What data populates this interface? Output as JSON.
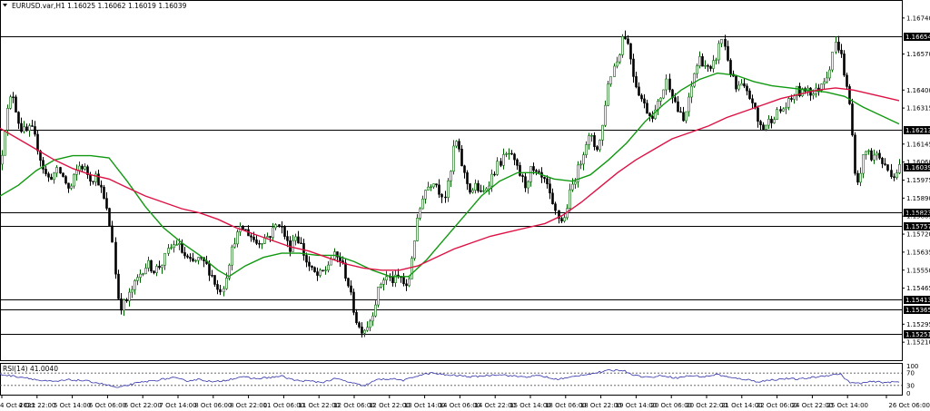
{
  "chart_data": {
    "type": "candlestick",
    "symbol_header": "EURUSD.var,H1  1.16025 1.16062 1.16019 1.16039",
    "current_price": 1.16039,
    "ylim": [
      1.15125,
      1.16825
    ],
    "y_ticks": [
      "1.16740",
      "1.16570",
      "1.16400",
      "1.16315",
      "1.16145",
      "1.16060",
      "1.15975",
      "1.15890",
      "1.15805",
      "1.15720",
      "1.15635",
      "1.15550",
      "1.15465",
      "1.15295",
      "1.15210"
    ],
    "x_ticks": [
      "4 Oct 2021",
      "4 Oct 22:00",
      "5 Oct 14:00",
      "6 Oct 06:00",
      "6 Oct 22:00",
      "7 Oct 14:00",
      "8 Oct 06:00",
      "8 Oct 22:00",
      "11 Oct 06:00",
      "11 Oct 22:00",
      "12 Oct 06:00",
      "12 Oct 22:00",
      "13 Oct 14:00",
      "14 Oct 06:00",
      "14 Oct 22:00",
      "15 Oct 14:00",
      "18 Oct 06:00",
      "18 Oct 22:00",
      "19 Oct 14:00",
      "20 Oct 06:00",
      "20 Oct 22:00",
      "21 Oct 14:00",
      "22 Oct 06:00",
      "24 Oct 22:00",
      "25 Oct 14:00",
      "26 Oct 06:00"
    ],
    "horizontal_levels": [
      "1.16654",
      "1.16213",
      "1.15823",
      "1.15757",
      "1.15413",
      "1.15365",
      "1.15251"
    ],
    "close_path": [
      [
        0,
        1.1605
      ],
      [
        5,
        1.1625
      ],
      [
        10,
        1.1635
      ],
      [
        14,
        1.1638
      ],
      [
        18,
        1.1628
      ],
      [
        22,
        1.1622
      ],
      [
        28,
        1.162
      ],
      [
        34,
        1.1622
      ],
      [
        40,
        1.1615
      ],
      [
        46,
        1.1605
      ],
      [
        52,
        1.1598
      ],
      [
        58,
        1.16
      ],
      [
        64,
        1.1602
      ],
      [
        70,
        1.1598
      ],
      [
        76,
        1.1592
      ],
      [
        82,
        1.16
      ],
      [
        88,
        1.1605
      ],
      [
        94,
        1.1602
      ],
      [
        100,
        1.1598
      ],
      [
        106,
        1.16
      ],
      [
        112,
        1.1592
      ],
      [
        118,
        1.1582
      ],
      [
        124,
        1.1568
      ],
      [
        128,
        1.1545
      ],
      [
        132,
        1.1538
      ],
      [
        138,
        1.154
      ],
      [
        144,
        1.1545
      ],
      [
        150,
        1.155
      ],
      [
        156,
        1.1555
      ],
      [
        162,
        1.1558
      ],
      [
        170,
        1.1555
      ],
      [
        178,
        1.1558
      ],
      [
        186,
        1.1565
      ],
      [
        194,
        1.1568
      ],
      [
        202,
        1.1562
      ],
      [
        210,
        1.1558
      ],
      [
        218,
        1.156
      ],
      [
        226,
        1.1558
      ],
      [
        234,
        1.1552
      ],
      [
        240,
        1.1545
      ],
      [
        246,
        1.1548
      ],
      [
        252,
        1.156
      ],
      [
        258,
        1.157
      ],
      [
        266,
        1.1575
      ],
      [
        274,
        1.1572
      ],
      [
        282,
        1.1568
      ],
      [
        290,
        1.157
      ],
      [
        298,
        1.1572
      ],
      [
        306,
        1.1578
      ],
      [
        312,
        1.1572
      ],
      [
        318,
        1.1565
      ],
      [
        324,
        1.1572
      ],
      [
        330,
        1.1568
      ],
      [
        336,
        1.156
      ],
      [
        342,
        1.1555
      ],
      [
        350,
        1.1552
      ],
      [
        358,
        1.1555
      ],
      [
        366,
        1.1562
      ],
      [
        374,
        1.156
      ],
      [
        382,
        1.155
      ],
      [
        388,
        1.1538
      ],
      [
        394,
        1.1528
      ],
      [
        400,
        1.1527
      ],
      [
        406,
        1.153
      ],
      [
        412,
        1.1538
      ],
      [
        418,
        1.1548
      ],
      [
        424,
        1.1552
      ],
      [
        432,
        1.155
      ],
      [
        440,
        1.1552
      ],
      [
        448,
        1.1545
      ],
      [
        454,
        1.1565
      ],
      [
        460,
        1.158
      ],
      [
        466,
        1.1592
      ],
      [
        472,
        1.1595
      ],
      [
        478,
        1.1598
      ],
      [
        484,
        1.1592
      ],
      [
        490,
        1.159
      ],
      [
        496,
        1.1602
      ],
      [
        500,
        1.1618
      ],
      [
        506,
        1.1608
      ],
      [
        512,
        1.1598
      ],
      [
        518,
        1.1592
      ],
      [
        524,
        1.1595
      ],
      [
        530,
        1.159
      ],
      [
        536,
        1.1595
      ],
      [
        542,
        1.16
      ],
      [
        548,
        1.1605
      ],
      [
        554,
        1.1608
      ],
      [
        560,
        1.161
      ],
      [
        566,
        1.1605
      ],
      [
        572,
        1.16
      ],
      [
        578,
        1.1595
      ],
      [
        584,
        1.1602
      ],
      [
        590,
        1.16
      ],
      [
        596,
        1.1598
      ],
      [
        602,
        1.1595
      ],
      [
        608,
        1.1585
      ],
      [
        614,
        1.158
      ],
      [
        620,
        1.1578
      ],
      [
        626,
        1.159
      ],
      [
        632,
        1.1598
      ],
      [
        638,
        1.1605
      ],
      [
        644,
        1.1615
      ],
      [
        650,
        1.1618
      ],
      [
        656,
        1.1612
      ],
      [
        662,
        1.1618
      ],
      [
        668,
        1.164
      ],
      [
        674,
        1.165
      ],
      [
        680,
        1.1655
      ],
      [
        686,
        1.1668
      ],
      [
        692,
        1.166
      ],
      [
        698,
        1.1645
      ],
      [
        704,
        1.1638
      ],
      [
        710,
        1.1632
      ],
      [
        716,
        1.1628
      ],
      [
        722,
        1.163
      ],
      [
        728,
        1.1638
      ],
      [
        734,
        1.1645
      ],
      [
        740,
        1.1638
      ],
      [
        746,
        1.163
      ],
      [
        752,
        1.1625
      ],
      [
        758,
        1.1635
      ],
      [
        764,
        1.1648
      ],
      [
        770,
        1.1655
      ],
      [
        776,
        1.1652
      ],
      [
        782,
        1.1648
      ],
      [
        788,
        1.1655
      ],
      [
        794,
        1.1665
      ],
      [
        798,
        1.166
      ],
      [
        804,
        1.1648
      ],
      [
        810,
        1.164
      ],
      [
        816,
        1.1642
      ],
      [
        822,
        1.1638
      ],
      [
        828,
        1.1635
      ],
      [
        834,
        1.1625
      ],
      [
        840,
        1.1622
      ],
      [
        846,
        1.1625
      ],
      [
        852,
        1.1628
      ],
      [
        858,
        1.163
      ],
      [
        864,
        1.1632
      ],
      [
        870,
        1.1635
      ],
      [
        876,
        1.164
      ],
      [
        882,
        1.1638
      ],
      [
        888,
        1.1642
      ],
      [
        894,
        1.1638
      ],
      [
        900,
        1.164
      ],
      [
        906,
        1.1645
      ],
      [
        912,
        1.1648
      ],
      [
        918,
        1.1662
      ],
      [
        924,
        1.166
      ],
      [
        930,
        1.1645
      ],
      [
        936,
        1.163
      ],
      [
        940,
        1.1605
      ],
      [
        944,
        1.1595
      ],
      [
        948,
        1.1605
      ],
      [
        954,
        1.1612
      ],
      [
        960,
        1.1608
      ],
      [
        966,
        1.161
      ],
      [
        972,
        1.1605
      ],
      [
        978,
        1.1602
      ],
      [
        984,
        1.16
      ],
      [
        990,
        1.1604
      ]
    ],
    "ma_fast_green": [
      [
        0,
        1.159
      ],
      [
        20,
        1.1595
      ],
      [
        40,
        1.1602
      ],
      [
        60,
        1.1607
      ],
      [
        80,
        1.1609
      ],
      [
        100,
        1.1609
      ],
      [
        120,
        1.1608
      ],
      [
        140,
        1.1597
      ],
      [
        160,
        1.1585
      ],
      [
        180,
        1.1575
      ],
      [
        200,
        1.1568
      ],
      [
        220,
        1.1562
      ],
      [
        240,
        1.1555
      ],
      [
        252,
        1.1552
      ],
      [
        270,
        1.1557
      ],
      [
        290,
        1.1561
      ],
      [
        310,
        1.1563
      ],
      [
        330,
        1.1563
      ],
      [
        350,
        1.1562
      ],
      [
        370,
        1.1562
      ],
      [
        390,
        1.1559
      ],
      [
        410,
        1.1555
      ],
      [
        430,
        1.1552
      ],
      [
        450,
        1.1552
      ],
      [
        470,
        1.156
      ],
      [
        490,
        1.157
      ],
      [
        510,
        1.158
      ],
      [
        530,
        1.159
      ],
      [
        550,
        1.1597
      ],
      [
        570,
        1.1601
      ],
      [
        590,
        1.1601
      ],
      [
        610,
        1.1598
      ],
      [
        630,
        1.1597
      ],
      [
        650,
        1.16
      ],
      [
        670,
        1.1607
      ],
      [
        690,
        1.1615
      ],
      [
        710,
        1.1625
      ],
      [
        730,
        1.1633
      ],
      [
        750,
        1.164
      ],
      [
        770,
        1.1645
      ],
      [
        790,
        1.1648
      ],
      [
        810,
        1.1647
      ],
      [
        830,
        1.1644
      ],
      [
        850,
        1.1642
      ],
      [
        870,
        1.1641
      ],
      [
        890,
        1.164
      ],
      [
        910,
        1.1639
      ],
      [
        930,
        1.1637
      ],
      [
        950,
        1.1632
      ],
      [
        970,
        1.1628
      ],
      [
        990,
        1.1624
      ]
    ],
    "ma_slow_red": [
      [
        0,
        1.1622
      ],
      [
        20,
        1.1617
      ],
      [
        40,
        1.1612
      ],
      [
        60,
        1.1607
      ],
      [
        80,
        1.1603
      ],
      [
        100,
        1.16
      ],
      [
        120,
        1.1598
      ],
      [
        140,
        1.1594
      ],
      [
        160,
        1.159
      ],
      [
        180,
        1.1587
      ],
      [
        200,
        1.1584
      ],
      [
        220,
        1.1582
      ],
      [
        240,
        1.1579
      ],
      [
        260,
        1.1575
      ],
      [
        280,
        1.1572
      ],
      [
        300,
        1.1569
      ],
      [
        320,
        1.1566
      ],
      [
        340,
        1.1564
      ],
      [
        360,
        1.1561
      ],
      [
        380,
        1.1558
      ],
      [
        400,
        1.1556
      ],
      [
        420,
        1.1555
      ],
      [
        440,
        1.1555
      ],
      [
        460,
        1.1557
      ],
      [
        480,
        1.1561
      ],
      [
        500,
        1.1565
      ],
      [
        520,
        1.1568
      ],
      [
        540,
        1.1571
      ],
      [
        560,
        1.1573
      ],
      [
        580,
        1.1575
      ],
      [
        600,
        1.1577
      ],
      [
        620,
        1.1581
      ],
      [
        640,
        1.1587
      ],
      [
        660,
        1.1594
      ],
      [
        680,
        1.1601
      ],
      [
        700,
        1.1607
      ],
      [
        720,
        1.1612
      ],
      [
        740,
        1.1617
      ],
      [
        760,
        1.162
      ],
      [
        780,
        1.1623
      ],
      [
        800,
        1.1627
      ],
      [
        820,
        1.163
      ],
      [
        840,
        1.1633
      ],
      [
        860,
        1.1636
      ],
      [
        880,
        1.1638
      ],
      [
        900,
        1.164
      ],
      [
        920,
        1.1641
      ],
      [
        940,
        1.164
      ],
      [
        960,
        1.1638
      ],
      [
        980,
        1.1636
      ],
      [
        990,
        1.1635
      ]
    ],
    "rsi": {
      "header": "RSI(14) 41.0040",
      "ylim": [
        0,
        100
      ],
      "levels_labels": [
        "100",
        "70",
        "30",
        "0"
      ],
      "dashed_levels": [
        70,
        30
      ],
      "values": [
        [
          0,
          66
        ],
        [
          15,
          60
        ],
        [
          30,
          55
        ],
        [
          45,
          45
        ],
        [
          60,
          42
        ],
        [
          75,
          48
        ],
        [
          90,
          46
        ],
        [
          105,
          40
        ],
        [
          120,
          30
        ],
        [
          130,
          22
        ],
        [
          145,
          34
        ],
        [
          160,
          42
        ],
        [
          175,
          48
        ],
        [
          190,
          55
        ],
        [
          205,
          45
        ],
        [
          220,
          50
        ],
        [
          235,
          40
        ],
        [
          250,
          48
        ],
        [
          265,
          58
        ],
        [
          280,
          52
        ],
        [
          295,
          55
        ],
        [
          310,
          60
        ],
        [
          325,
          46
        ],
        [
          340,
          44
        ],
        [
          355,
          40
        ],
        [
          370,
          52
        ],
        [
          385,
          40
        ],
        [
          400,
          28
        ],
        [
          415,
          48
        ],
        [
          430,
          52
        ],
        [
          445,
          46
        ],
        [
          460,
          62
        ],
        [
          475,
          70
        ],
        [
          490,
          64
        ],
        [
          505,
          62
        ],
        [
          520,
          58
        ],
        [
          535,
          62
        ],
        [
          550,
          66
        ],
        [
          565,
          60
        ],
        [
          580,
          58
        ],
        [
          595,
          62
        ],
        [
          610,
          50
        ],
        [
          625,
          54
        ],
        [
          640,
          64
        ],
        [
          655,
          70
        ],
        [
          670,
          78
        ],
        [
          685,
          80
        ],
        [
          700,
          62
        ],
        [
          715,
          56
        ],
        [
          730,
          62
        ],
        [
          745,
          54
        ],
        [
          760,
          62
        ],
        [
          775,
          58
        ],
        [
          790,
          66
        ],
        [
          805,
          54
        ],
        [
          820,
          50
        ],
        [
          835,
          42
        ],
        [
          850,
          48
        ],
        [
          865,
          52
        ],
        [
          880,
          50
        ],
        [
          895,
          56
        ],
        [
          910,
          62
        ],
        [
          925,
          68
        ],
        [
          935,
          40
        ],
        [
          945,
          36
        ],
        [
          960,
          42
        ],
        [
          975,
          40
        ],
        [
          990,
          41
        ]
      ]
    },
    "colors": {
      "bull_candle": "#006400",
      "bear_candle": "#000000",
      "ma_fast": "#119911",
      "ma_slow": "#dd1144",
      "rsi_line": "#3333aa",
      "levels": "#000000",
      "price_tag": "#000000"
    }
  }
}
